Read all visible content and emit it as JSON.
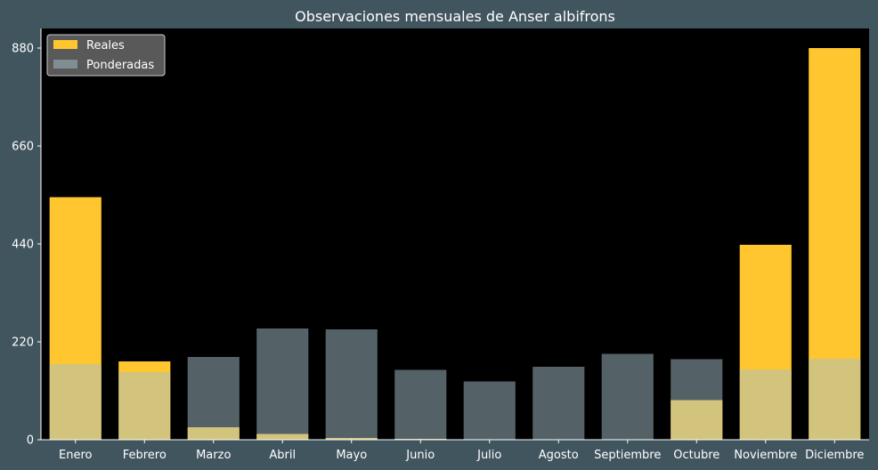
{
  "chart_data": {
    "type": "bar",
    "title": "Observaciones mensuales de Anser albifrons",
    "xlabel": "",
    "ylabel": "",
    "categories": [
      "Enero",
      "Febrero",
      "Marzo",
      "Abril",
      "Mayo",
      "Junio",
      "Julio",
      "Agosto",
      "Septiembre",
      "Octubre",
      "Noviembre",
      "Diciembre"
    ],
    "series": [
      {
        "name": "Reales",
        "values": [
          545,
          176,
          28,
          13,
          4,
          2,
          0,
          0,
          0,
          89,
          438,
          880
        ],
        "color": "#ffc62f"
      },
      {
        "name": "Ponderadas",
        "values": [
          170,
          152,
          186,
          250,
          248,
          157,
          131,
          164,
          193,
          181,
          158,
          182
        ],
        "color": "#a8c1cb",
        "opacity": 0.5
      }
    ],
    "ylim": [
      0,
      924
    ],
    "yticks": [
      0,
      220,
      440,
      660,
      880
    ],
    "grid": false,
    "legend_position": "top-left",
    "background": "#41555f",
    "plot_background": "#000000"
  }
}
